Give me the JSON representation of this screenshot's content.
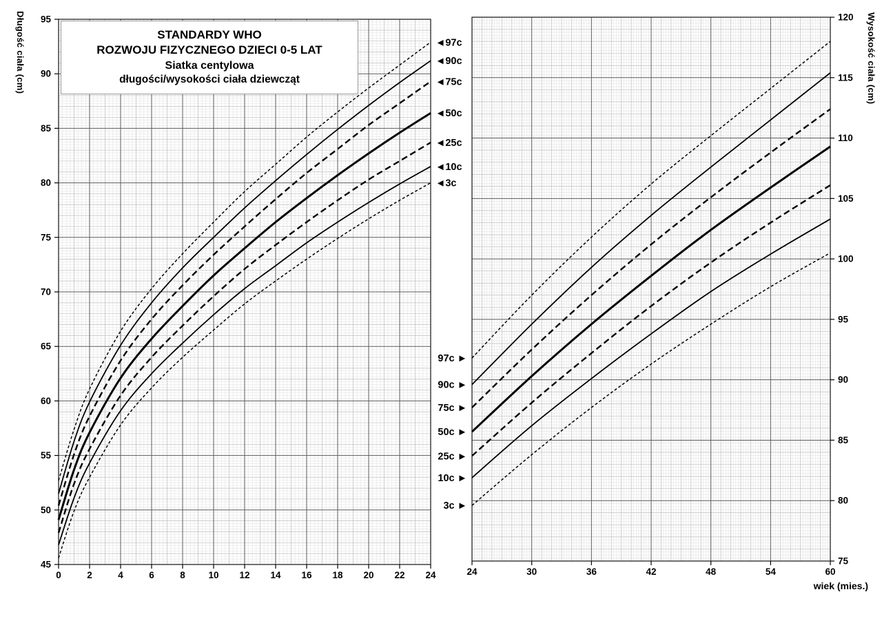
{
  "title_box": {
    "lines": [
      "STANDARDY WHO",
      "ROZWOJU FIZYCZNEGO DZIECI 0-5 LAT",
      "Siatka centylowa",
      "długości/wysokości ciała dziewcząt"
    ]
  },
  "axes": {
    "left_y_label": "Długość ciała (cm)",
    "right_y_label": "Wysokość ciała (cm)",
    "x_label": "wiek (mies.)"
  },
  "icons": {
    "arrow_left": "◄",
    "arrow_right": "►"
  },
  "chart_data": [
    {
      "id": "length_0_24",
      "type": "line",
      "title": "Siatka centylowa długości ciała dziewcząt 0-24 mies.",
      "xlabel": "wiek (mies.)",
      "ylabel": "Długość ciała (cm)",
      "xlim": [
        0,
        24
      ],
      "ylim": [
        45,
        95
      ],
      "xticks": [
        0,
        2,
        4,
        6,
        8,
        10,
        12,
        14,
        16,
        18,
        20,
        22,
        24
      ],
      "yticks": [
        45,
        50,
        55,
        60,
        65,
        70,
        75,
        80,
        85,
        90,
        95
      ],
      "y_tick_side": "left",
      "label_side": "right",
      "grid": {
        "x_minor": 0.25,
        "x_mid": 1,
        "x_major": 2,
        "y_minor": 0.25,
        "y_mid": 1,
        "y_major": 5
      },
      "x": [
        0,
        1,
        2,
        4,
        6,
        8,
        10,
        12,
        14,
        16,
        18,
        20,
        22,
        24
      ],
      "series": [
        {
          "name": "97c",
          "dash": "4,3",
          "width": 1.5,
          "values": [
            52.7,
            57.4,
            61.1,
            66.4,
            70.3,
            73.5,
            76.4,
            79.2,
            81.7,
            84.2,
            86.5,
            88.7,
            90.8,
            92.9
          ]
        },
        {
          "name": "90c",
          "dash": "",
          "width": 1.8,
          "values": [
            51.5,
            56.3,
            59.9,
            65.1,
            69.0,
            72.2,
            75.0,
            77.7,
            80.2,
            82.6,
            84.9,
            87.1,
            89.2,
            91.2
          ]
        },
        {
          "name": "75c",
          "dash": "9,5",
          "width": 2.4,
          "values": [
            50.4,
            55.1,
            58.6,
            63.7,
            67.5,
            70.6,
            73.4,
            76.0,
            78.5,
            80.9,
            83.1,
            85.3,
            87.3,
            89.3
          ]
        },
        {
          "name": "50c",
          "dash": "",
          "width": 3,
          "values": [
            49.1,
            53.7,
            57.1,
            62.1,
            65.7,
            68.7,
            71.5,
            74.0,
            76.4,
            78.6,
            80.7,
            82.7,
            84.6,
            86.4
          ]
        },
        {
          "name": "25c",
          "dash": "9,5",
          "width": 2.4,
          "values": [
            47.9,
            52.4,
            55.6,
            60.5,
            64.0,
            66.9,
            69.6,
            72.1,
            74.3,
            76.4,
            78.4,
            80.3,
            82.0,
            83.7
          ]
        },
        {
          "name": "10c",
          "dash": "",
          "width": 1.8,
          "values": [
            46.8,
            51.1,
            54.3,
            59.1,
            62.5,
            65.3,
            67.9,
            70.3,
            72.4,
            74.5,
            76.4,
            78.2,
            79.9,
            81.5
          ]
        },
        {
          "name": "3c",
          "dash": "4,3",
          "width": 1.5,
          "values": [
            45.6,
            49.9,
            53.0,
            57.8,
            61.2,
            64.0,
            66.5,
            68.9,
            71.0,
            73.0,
            74.9,
            76.7,
            78.4,
            80.0
          ]
        }
      ]
    },
    {
      "id": "height_24_60",
      "type": "line",
      "title": "Siatka centylowa wysokości ciała dziewcząt 24-60 mies.",
      "xlabel": "wiek (mies.)",
      "ylabel": "Wysokość ciała (cm)",
      "xlim": [
        24,
        60
      ],
      "ylim": [
        75,
        120
      ],
      "xticks": [
        24,
        30,
        36,
        42,
        48,
        54,
        60
      ],
      "yticks": [
        75,
        80,
        85,
        90,
        95,
        100,
        105,
        110,
        115,
        120
      ],
      "y_tick_side": "right",
      "label_side": "left",
      "grid": {
        "x_minor": 0.25,
        "x_mid": 1,
        "x_major": 6,
        "y_minor": 0.25,
        "y_mid": 1,
        "y_major": 5
      },
      "x": [
        24,
        30,
        36,
        42,
        48,
        54,
        60
      ],
      "series": [
        {
          "name": "97c",
          "dash": "4,3",
          "width": 1.5,
          "values": [
            91.8,
            97.0,
            101.8,
            106.2,
            110.2,
            114.1,
            118.0
          ]
        },
        {
          "name": "90c",
          "dash": "",
          "width": 1.8,
          "values": [
            89.6,
            94.6,
            99.3,
            103.6,
            107.6,
            111.5,
            115.4
          ]
        },
        {
          "name": "75c",
          "dash": "9,5",
          "width": 2.4,
          "values": [
            87.7,
            92.5,
            97.0,
            101.2,
            105.1,
            108.8,
            112.4
          ]
        },
        {
          "name": "50c",
          "dash": "",
          "width": 3,
          "values": [
            85.7,
            90.3,
            94.6,
            98.6,
            102.4,
            105.9,
            109.3
          ]
        },
        {
          "name": "25c",
          "dash": "9,5",
          "width": 2.4,
          "values": [
            83.7,
            88.1,
            92.2,
            96.1,
            99.7,
            103.0,
            106.1
          ]
        },
        {
          "name": "10c",
          "dash": "",
          "width": 1.8,
          "values": [
            81.9,
            86.2,
            90.1,
            93.8,
            97.3,
            100.4,
            103.3
          ]
        },
        {
          "name": "3c",
          "dash": "4,3",
          "width": 1.5,
          "values": [
            79.6,
            83.8,
            87.7,
            91.3,
            94.6,
            97.7,
            100.5
          ]
        }
      ]
    }
  ]
}
